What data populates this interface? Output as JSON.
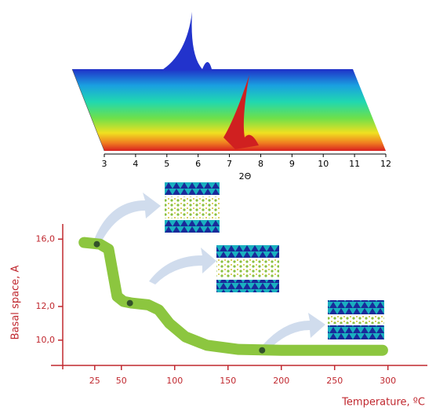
{
  "chart_data": [
    {
      "type": "surface",
      "xlabel": "2Θ",
      "xlim": [
        3,
        12
      ],
      "xticks": [
        3,
        4,
        5,
        6,
        7,
        8,
        9,
        10,
        11,
        12
      ]
    },
    {
      "type": "line",
      "ylabel": "Basal space, A",
      "xlabel": "Temperature, ºC",
      "xlim": [
        -5,
        337
      ],
      "ylim": [
        8.5,
        16.9
      ],
      "xticks": [
        25,
        50,
        100,
        150,
        200,
        250,
        300
      ],
      "yticks": [
        {
          "value": 10,
          "label": "10,0"
        },
        {
          "value": 12,
          "label": "12,0"
        },
        {
          "value": 16,
          "label": "16,0"
        }
      ],
      "axis_color": "#c0282f",
      "series": [
        {
          "color": "#8cc63f",
          "x": [
            15,
            30,
            38,
            42,
            46,
            52,
            60,
            75,
            85,
            95,
            110,
            130,
            160,
            200,
            295
          ],
          "values": [
            15.8,
            15.7,
            15.4,
            14,
            12.6,
            12.3,
            12.2,
            12.1,
            11.8,
            11,
            10.2,
            9.7,
            9.45,
            9.4,
            9.4
          ]
        },
        {
          "color": "#33512a",
          "marker": true,
          "x": [
            27,
            58,
            182
          ],
          "values": [
            15.7,
            12.2,
            9.4
          ]
        }
      ]
    }
  ]
}
